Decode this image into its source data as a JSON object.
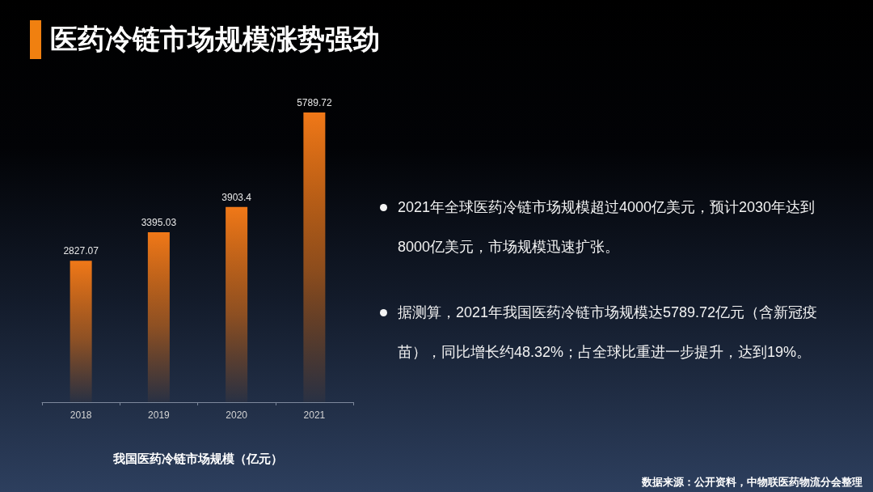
{
  "chart_data": {
    "type": "bar",
    "title": "医药冷链市场规模涨势强劲",
    "xlabel": "我国医药冷链市场规模（亿元）",
    "categories": [
      "2018",
      "2019",
      "2020",
      "2021"
    ],
    "values": [
      2827.07,
      3395.03,
      3903.4,
      5789.72
    ],
    "color": "#f07818",
    "data_labels": true,
    "annotations": [
      "2021年全球医药冷链市场规模超过4000亿美元，预计2030年达到8000亿美元，市场规模迅速扩张。",
      "据测算，2021年我国医药冷链市场规模达5789.72亿元（含新冠疫苗），同比增长约48.32%；占全球比重进一步提升，达到19%。",
      "数据来源：公开资料，中物联医药物流分会整理"
    ]
  }
}
